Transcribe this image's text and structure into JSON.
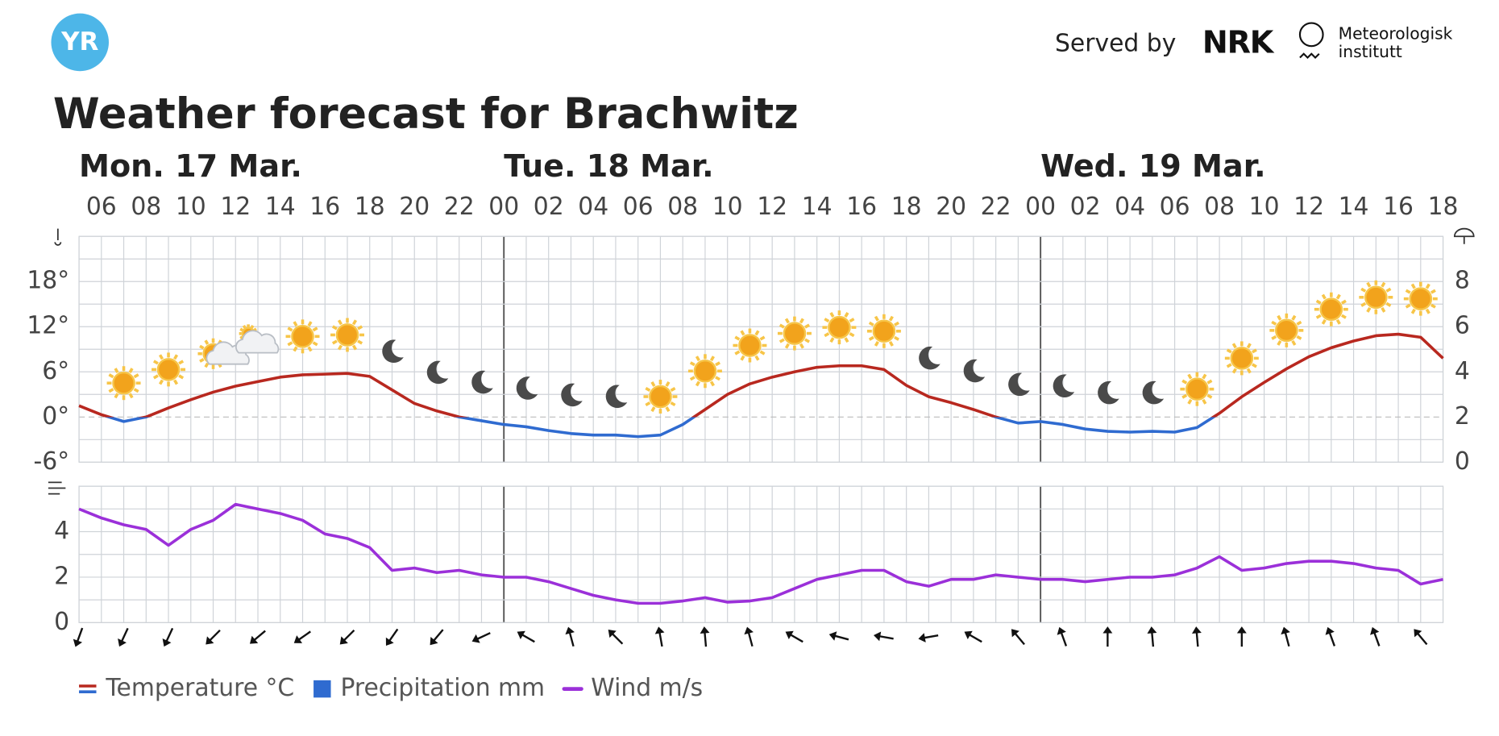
{
  "header": {
    "logo": "YR",
    "served_by": "Served by",
    "nrk": "NRK",
    "met_line1": "Meteorologisk",
    "met_line2": "institutt",
    "title": "Weather forecast for Brachwitz"
  },
  "chart_data": [
    {
      "type": "line",
      "days": [
        "Mon. 17 Mar.",
        "Tue. 18 Mar.",
        "Wed. 19 Mar."
      ],
      "categories": [
        null,
        "06",
        null,
        "08",
        null,
        "10",
        null,
        "12",
        null,
        "14",
        null,
        "16",
        null,
        "18",
        null,
        "20",
        null,
        "22",
        null,
        "00",
        null,
        "02",
        null,
        "04",
        null,
        "06",
        null,
        "08",
        null,
        "10",
        null,
        "12",
        null,
        "14",
        null,
        "16",
        null,
        "18",
        null,
        "20",
        null,
        "22",
        null,
        "00",
        null,
        "02",
        null,
        "04",
        null,
        "06",
        null,
        "08",
        null,
        "10",
        null,
        "12",
        null,
        "14",
        null,
        "16",
        null,
        "18"
      ],
      "series": [
        {
          "name": "Temperature °C",
          "color": "#b8281f",
          "cold_color": "#2f6bd0",
          "values": [
            1.5,
            0.3,
            -0.6,
            0,
            1.2,
            2.3,
            3.3,
            4.1,
            4.7,
            5.3,
            5.6,
            5.7,
            5.8,
            5.4,
            3.6,
            1.8,
            0.8,
            0,
            -0.5,
            -1.0,
            -1.3,
            -1.8,
            -2.2,
            -2.4,
            -2.4,
            -2.6,
            -2.4,
            -1.0,
            1.0,
            3.0,
            4.4,
            5.3,
            6.0,
            6.6,
            6.8,
            6.8,
            6.3,
            4.2,
            2.7,
            1.9,
            1.0,
            0,
            -0.8,
            -0.6,
            -1.0,
            -1.6,
            -1.9,
            -2.0,
            -1.9,
            -2.0,
            -1.4,
            0.5,
            2.7,
            4.6,
            6.4,
            8.0,
            9.2,
            10.1,
            10.8,
            11.0,
            10.6,
            7.8
          ]
        },
        {
          "name": "Precipitation mm",
          "color": "#2f6bd0",
          "axis": "y2",
          "values": [
            0,
            0,
            0,
            0,
            0,
            0,
            0,
            0,
            0,
            0,
            0,
            0,
            0,
            0,
            0,
            0,
            0,
            0,
            0,
            0,
            0,
            0,
            0,
            0,
            0,
            0,
            0,
            0,
            0,
            0,
            0,
            0,
            0,
            0,
            0,
            0,
            0,
            0,
            0,
            0,
            0,
            0,
            0,
            0,
            0,
            0,
            0,
            0,
            0,
            0,
            0,
            0,
            0,
            0,
            0,
            0,
            0,
            0,
            0,
            0,
            0,
            0
          ]
        }
      ],
      "ylim": [
        -6,
        24
      ],
      "yticks": [
        {
          "value": -6,
          "label": "-6°"
        },
        {
          "value": 0,
          "label": "0°"
        },
        {
          "value": 6,
          "label": "6°"
        },
        {
          "value": 12,
          "label": "12°"
        },
        {
          "value": 18,
          "label": "18°"
        }
      ],
      "y2lim": [
        0,
        10
      ],
      "y2ticks": [
        0,
        2,
        4,
        6,
        8
      ],
      "grid": true
    },
    {
      "type": "line",
      "series": [
        {
          "name": "Wind m/s",
          "color": "#9b30d9",
          "values": [
            5.0,
            4.6,
            4.3,
            4.1,
            3.4,
            4.1,
            4.5,
            5.2,
            5.0,
            4.8,
            4.5,
            3.9,
            3.7,
            3.3,
            2.3,
            2.4,
            2.2,
            2.3,
            2.1,
            2.0,
            2.0,
            1.8,
            1.5,
            1.2,
            1.0,
            0.85,
            0.85,
            0.95,
            1.1,
            0.9,
            0.95,
            1.1,
            1.5,
            1.9,
            2.1,
            2.3,
            2.3,
            1.8,
            1.6,
            1.9,
            1.9,
            2.1,
            2.0,
            1.9,
            1.9,
            1.8,
            1.9,
            2.0,
            2.0,
            2.1,
            2.4,
            2.9,
            2.3,
            2.4,
            2.6,
            2.7,
            2.7,
            2.6,
            2.4,
            2.3,
            1.7,
            1.9
          ]
        }
      ],
      "wind_direction": [
        20,
        25,
        25,
        45,
        50,
        55,
        45,
        35,
        40,
        65,
        120,
        165,
        135,
        170,
        175,
        165,
        120,
        105,
        100,
        80,
        120,
        140,
        160,
        180,
        175,
        175,
        180,
        165,
        160,
        160,
        140
      ],
      "ylim": [
        0,
        6
      ],
      "yticks": [
        0,
        2,
        4
      ],
      "grid": true
    }
  ]
}
